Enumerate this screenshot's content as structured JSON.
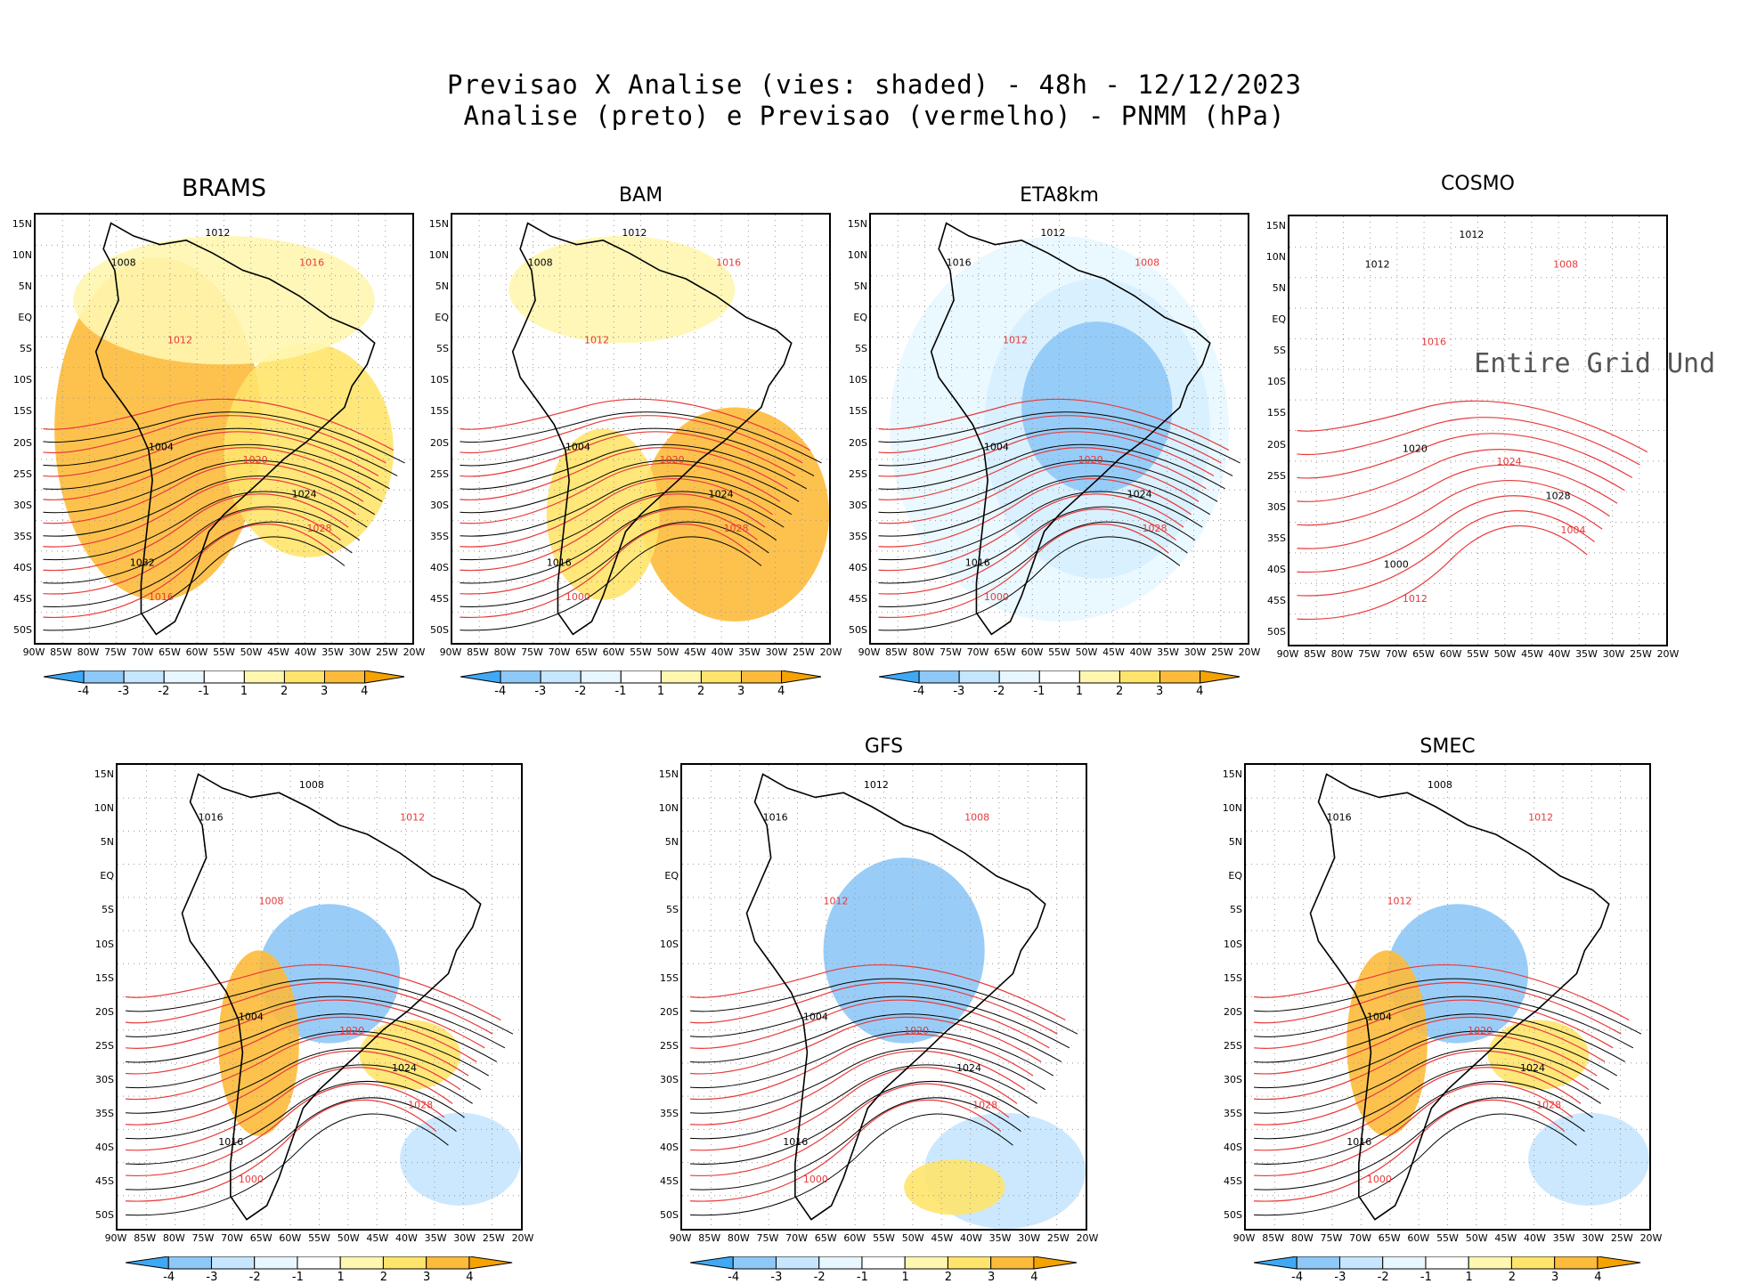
{
  "header": {
    "line1": "Previsao X Analise (vies: shaded) - 48h - 12/12/2023",
    "line2": "Analise (preto) e Previsao (vermelho) - PNMM (hPa)"
  },
  "colors": {
    "neg4": "#3fa9f5",
    "neg3": "#8ec8f7",
    "neg2": "#c6e6ff",
    "neg1": "#e8f7ff",
    "zero": "#ffffff",
    "pos1": "#fff6b0",
    "pos2": "#ffe46b",
    "pos3": "#fdbb3b",
    "pos4": "#f5a300",
    "analysis_contour": "#000000",
    "forecast_contour": "#e83a3a"
  },
  "axes": {
    "lat_labels": [
      "15N",
      "10N",
      "5N",
      "EQ",
      "5S",
      "10S",
      "15S",
      "20S",
      "25S",
      "30S",
      "35S",
      "40S",
      "45S",
      "50S"
    ],
    "lon_labels": [
      "90W",
      "85W",
      "80W",
      "75W",
      "70W",
      "65W",
      "60W",
      "55W",
      "50W",
      "45W",
      "40W",
      "35W",
      "30W",
      "25W",
      "20W"
    ]
  },
  "colorbar": {
    "labels": [
      "-4",
      "-3",
      "-2",
      "-1",
      "1",
      "2",
      "3",
      "4"
    ]
  },
  "panels": [
    {
      "id": "brams",
      "title": "BRAMS",
      "bias": "warm",
      "contour_labels": [
        "1012",
        "1016",
        "1008",
        "1012",
        "1004",
        "1020",
        "1024",
        "1028",
        "1032",
        "1016"
      ]
    },
    {
      "id": "bam",
      "title": "BAM",
      "bias": "warm-south",
      "contour_labels": [
        "1012",
        "1016",
        "1008",
        "1012",
        "1004",
        "1020",
        "1024",
        "1028",
        "1016",
        "1000"
      ]
    },
    {
      "id": "eta",
      "title": "ETA8km",
      "bias": "cold",
      "contour_labels": [
        "1012",
        "1008",
        "1016",
        "1012",
        "1004",
        "1020",
        "1024",
        "1028",
        "1016",
        "1000"
      ]
    },
    {
      "id": "cosmo",
      "title": "COSMO",
      "bias": "none",
      "undef_text": "Entire Grid Und",
      "contour_labels": [
        "1012",
        "1008",
        "1012",
        "1016",
        "1020",
        "1024",
        "1028",
        "1004",
        "1000",
        "1012"
      ]
    },
    {
      "id": "p5",
      "title": "",
      "bias": "mixed",
      "contour_labels": [
        "1008",
        "1012",
        "1016",
        "1008",
        "1004",
        "1020",
        "1024",
        "1028",
        "1016",
        "1000"
      ]
    },
    {
      "id": "gfs",
      "title": "GFS",
      "bias": "cold-center",
      "contour_labels": [
        "1012",
        "1008",
        "1016",
        "1012",
        "1004",
        "1020",
        "1024",
        "1028",
        "1016",
        "1000"
      ]
    },
    {
      "id": "smec",
      "title": "SMEC",
      "bias": "mixed",
      "contour_labels": [
        "1008",
        "1012",
        "1016",
        "1012",
        "1004",
        "1020",
        "1024",
        "1028",
        "1016",
        "1000"
      ]
    }
  ]
}
